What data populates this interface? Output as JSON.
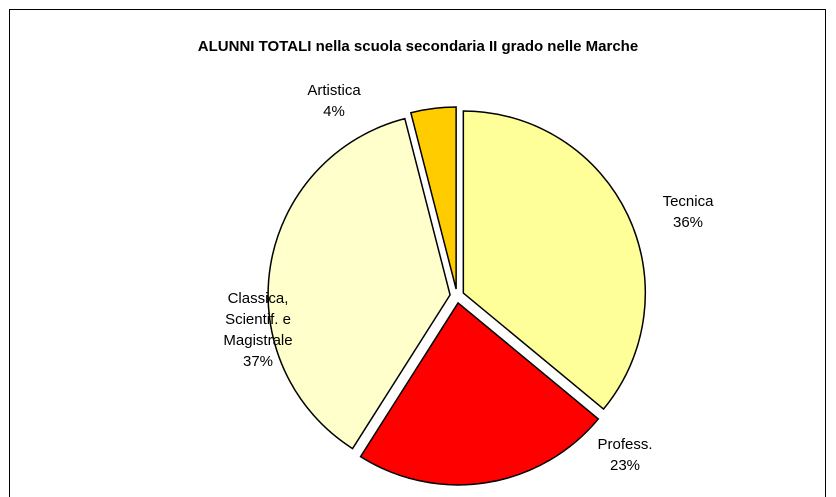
{
  "chart_data": {
    "type": "pie",
    "title": "ALUNNI TOTALI nella scuola secondaria II grado nelle Marche",
    "categories": [
      "Tecnica",
      "Profess.",
      "Classica, Scientif. e Magistrale",
      "Artistica"
    ],
    "values": [
      36,
      23,
      37,
      4
    ],
    "value_labels": [
      "36%",
      "23%",
      "37%",
      "4%"
    ],
    "colors": [
      "#FFFF99",
      "#FF0000",
      "#FFFFCC",
      "#FFCC00"
    ]
  }
}
